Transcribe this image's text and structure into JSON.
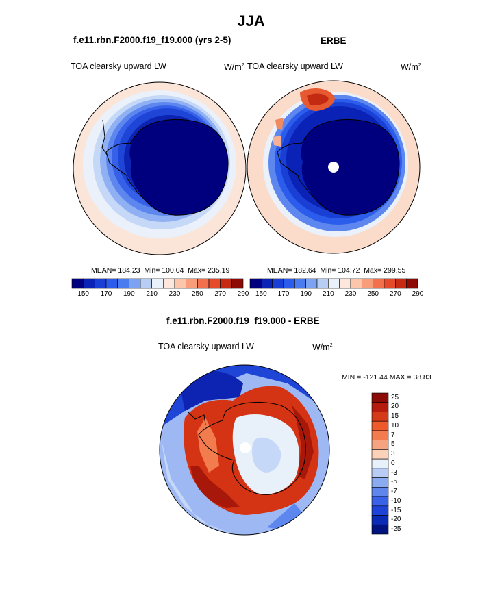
{
  "figure": {
    "title": "JJA",
    "panel_left": {
      "case_title": "f.e11.rbn.F2000.f19_f19.000 (yrs 2-5)",
      "variable": "TOA clearsky upward LW",
      "units": "W/m",
      "units_sup": "2",
      "mean_text": "MEAN= 184.23",
      "min_text": "Min= 100.04",
      "max_text": "Max= 235.19"
    },
    "panel_right": {
      "case_title": "ERBE",
      "variable": "TOA clearsky upward LW",
      "units": "W/m",
      "units_sup": "2",
      "mean_text": "MEAN= 182.64",
      "min_text": "Min= 104.72",
      "max_text": "Max= 299.55"
    },
    "panel_diff": {
      "case_title": "f.e11.rbn.F2000.f19_f19.000 - ERBE",
      "variable": "TOA clearsky upward LW",
      "units": "W/m",
      "units_sup": "2",
      "minmax_text": "MIN = -121.44 MAX =  38.83"
    }
  },
  "colorbar_top": {
    "colors": [
      "#00007f",
      "#0a23b6",
      "#1a3fd4",
      "#2b5cec",
      "#4a7bef",
      "#7ea2f2",
      "#b7cdf4",
      "#e9f1fa",
      "#fde7dc",
      "#fbc6ac",
      "#f89d79",
      "#f3704c",
      "#e54a2a",
      "#c72a12",
      "#8c0b07"
    ],
    "labels": [
      "150",
      "170",
      "190",
      "210",
      "230",
      "250",
      "270",
      "290"
    ]
  },
  "colorbar_diff": {
    "colors": [
      "#8c0b07",
      "#b51c0d",
      "#d43a18",
      "#ee5a2b",
      "#f27c4e",
      "#f6a47f",
      "#fbd1b9",
      "#e8f0fa",
      "#b9cdf4",
      "#8aabf0",
      "#5e86ec",
      "#3a62e8",
      "#1e43d8",
      "#0a2bb5",
      "#00137f"
    ],
    "labels": [
      "25",
      "20",
      "15",
      "10",
      "7",
      "5",
      "3",
      "0",
      "-3",
      "-5",
      "-7",
      "-10",
      "-15",
      "-20",
      "-25"
    ]
  },
  "map_colors": {
    "outer_left": "#fbe5d8",
    "outer_right": "#fbdccb",
    "ice": "#00007f",
    "diff_red": "#d53414",
    "diff_darkred": "#a8180a"
  }
}
